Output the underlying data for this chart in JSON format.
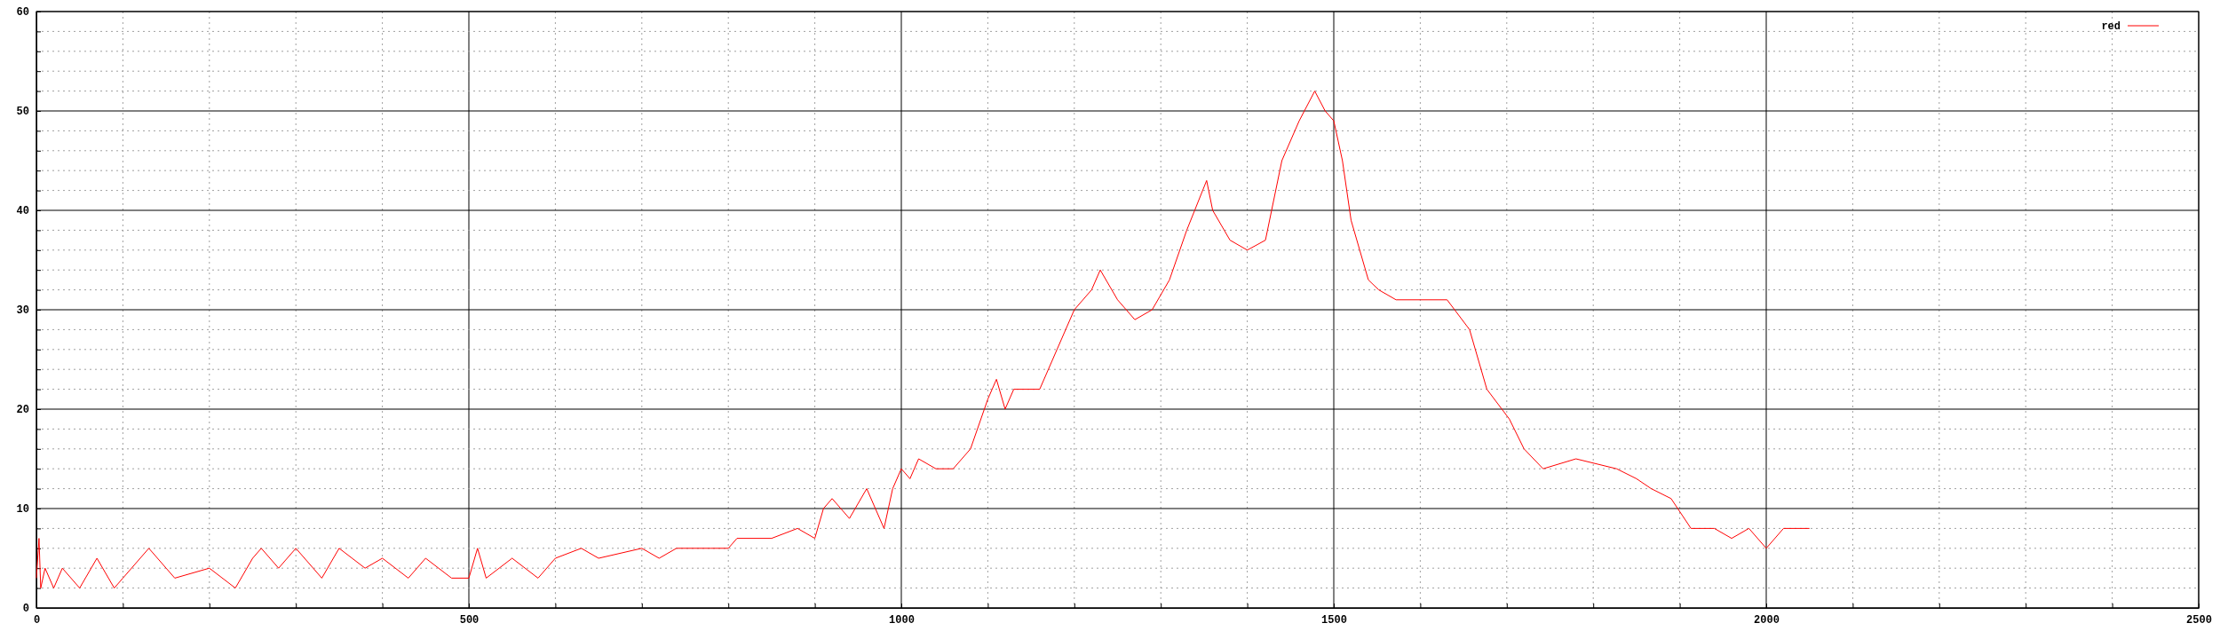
{
  "chart_data": {
    "type": "line",
    "xlim": [
      0,
      2500
    ],
    "ylim": [
      0,
      60
    ],
    "xticks": [
      0,
      {
        "value": 100,
        "label": null
      },
      {
        "value": 200,
        "label": null
      },
      {
        "value": 300,
        "label": null
      },
      {
        "value": 400,
        "label": null
      },
      500,
      {
        "value": 600,
        "label": null
      },
      {
        "value": 700,
        "label": null
      },
      {
        "value": 800,
        "label": null
      },
      {
        "value": 900,
        "label": null
      },
      1000,
      {
        "value": 1100,
        "label": null
      },
      {
        "value": 1200,
        "label": null
      },
      {
        "value": 1300,
        "label": null
      },
      {
        "value": 1400,
        "label": null
      },
      1500,
      {
        "value": 1600,
        "label": null
      },
      {
        "value": 1700,
        "label": null
      },
      {
        "value": 1800,
        "label": null
      },
      {
        "value": 1900,
        "label": null
      },
      2000,
      {
        "value": 2100,
        "label": null
      },
      {
        "value": 2200,
        "label": null
      },
      {
        "value": 2300,
        "label": null
      },
      {
        "value": 2400,
        "label": null
      },
      2500
    ],
    "yticks": [
      0,
      {
        "value": 2,
        "label": null
      },
      {
        "value": 4,
        "label": null
      },
      {
        "value": 6,
        "label": null
      },
      {
        "value": 8,
        "label": null
      },
      10,
      {
        "value": 12,
        "label": null
      },
      {
        "value": 14,
        "label": null
      },
      {
        "value": 16,
        "label": null
      },
      {
        "value": 18,
        "label": null
      },
      20,
      {
        "value": 22,
        "label": null
      },
      {
        "value": 24,
        "label": null
      },
      {
        "value": 26,
        "label": null
      },
      {
        "value": 28,
        "label": null
      },
      30,
      {
        "value": 32,
        "label": null
      },
      {
        "value": 34,
        "label": null
      },
      {
        "value": 36,
        "label": null
      },
      {
        "value": 38,
        "label": null
      },
      40,
      {
        "value": 42,
        "label": null
      },
      {
        "value": 44,
        "label": null
      },
      {
        "value": 46,
        "label": null
      },
      {
        "value": 48,
        "label": null
      },
      50,
      {
        "value": 52,
        "label": null
      },
      {
        "value": 54,
        "label": null
      },
      {
        "value": 56,
        "label": null
      },
      {
        "value": 58,
        "label": null
      },
      60
    ],
    "grid": true,
    "legend": "top right",
    "line_style": "solid",
    "marker": "none",
    "series": [
      {
        "name": "red",
        "color": "#ff0000",
        "x": [
          0,
          3,
          5,
          10,
          20,
          30,
          50,
          70,
          90,
          100,
          130,
          160,
          200,
          230,
          250,
          260,
          280,
          300,
          330,
          350,
          380,
          400,
          430,
          450,
          480,
          500,
          510,
          520,
          550,
          580,
          600,
          630,
          650,
          700,
          720,
          740,
          780,
          800,
          810,
          850,
          880,
          900,
          910,
          920,
          940,
          960,
          980,
          990,
          1000,
          1010,
          1020,
          1040,
          1060,
          1080,
          1100,
          1110,
          1120,
          1130,
          1160,
          1180,
          1200,
          1220,
          1230,
          1250,
          1270,
          1290,
          1310,
          1330,
          1353,
          1360,
          1380,
          1400,
          1421,
          1440,
          1460,
          1478,
          1490,
          1500,
          1510,
          1520,
          1540,
          1552,
          1572,
          1600,
          1631,
          1657,
          1677,
          1703,
          1720,
          1742,
          1780,
          1827,
          1850,
          1867,
          1890,
          1913,
          1940,
          1960,
          1980,
          2000,
          2020,
          2050
        ],
        "values": [
          3,
          7,
          2,
          4,
          2,
          4,
          2,
          5,
          2,
          3,
          6,
          3,
          4,
          2,
          5,
          6,
          4,
          6,
          3,
          6,
          4,
          5,
          3,
          5,
          3,
          3,
          6,
          3,
          5,
          3,
          5,
          6,
          5,
          6,
          5,
          6,
          6,
          6,
          7,
          7,
          8,
          7,
          10,
          11,
          9,
          12,
          8,
          12,
          14,
          13,
          15,
          14,
          14,
          16,
          21,
          23,
          20,
          22,
          22,
          26,
          30,
          32,
          34,
          31,
          29,
          30,
          33,
          38,
          43,
          40,
          37,
          36,
          37,
          45,
          49,
          52,
          50,
          49,
          45,
          39,
          33,
          32,
          31,
          31,
          31,
          28,
          22,
          19,
          16,
          14,
          15,
          14,
          13,
          12,
          11,
          8,
          8,
          7,
          8,
          6,
          8,
          8
        ]
      }
    ]
  }
}
